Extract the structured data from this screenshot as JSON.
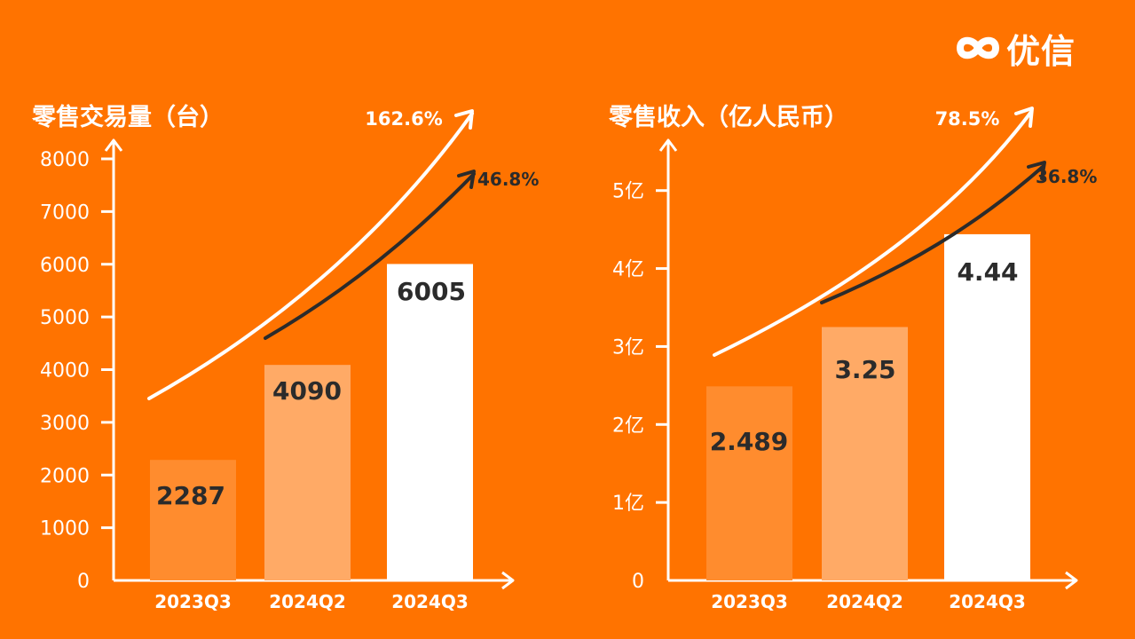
{
  "brand": {
    "name": "优信",
    "logo_icon": "infinity-icon",
    "color": "#FFFFFF"
  },
  "colors": {
    "background": "#FF7300",
    "axis": "#FFFFFF",
    "bar_2023q3": "#FF8C2E",
    "bar_2024q2": "#FFAA66",
    "bar_2024q3": "#FFFFFF",
    "label_dark": "#2B2B2B",
    "arrow_white": "#FFFFFF",
    "arrow_dark": "#2B2B2B"
  },
  "chart_data": [
    {
      "type": "bar",
      "title": "零售交易量（台）",
      "categories": [
        "2023Q3",
        "2024Q2",
        "2024Q3"
      ],
      "values": [
        2287,
        4090,
        6005
      ],
      "value_labels": [
        "2287",
        "4090",
        "6005"
      ],
      "ylim": [
        0,
        8000
      ],
      "y_ticks": [
        0,
        1000,
        2000,
        3000,
        4000,
        5000,
        6000,
        7000,
        8000
      ],
      "y_tick_labels": [
        "0",
        "1000",
        "2000",
        "3000",
        "4000",
        "5000",
        "6000",
        "7000",
        "8000"
      ],
      "grid": false,
      "annotations": [
        {
          "text": "162.6%",
          "from": "2023Q3",
          "to": "2024Q3",
          "arrow": "white"
        },
        {
          "text": "46.8%",
          "from": "2024Q2",
          "to": "2024Q3",
          "arrow": "dark"
        }
      ]
    },
    {
      "type": "bar",
      "title": "零售收入（亿人民币）",
      "categories": [
        "2023Q3",
        "2024Q2",
        "2024Q3"
      ],
      "values": [
        2.489,
        3.25,
        4.44
      ],
      "value_labels": [
        "2.489",
        "3.25",
        "4.44"
      ],
      "ylim": [
        0,
        5.6
      ],
      "y_ticks": [
        0,
        1,
        2,
        3,
        4,
        5
      ],
      "y_tick_labels": [
        "0",
        "1亿",
        "2亿",
        "3亿",
        "4亿",
        "5亿"
      ],
      "grid": false,
      "annotations": [
        {
          "text": "78.5%",
          "from": "2023Q3",
          "to": "2024Q3",
          "arrow": "white"
        },
        {
          "text": "36.8%",
          "from": "2024Q2",
          "to": "2024Q3",
          "arrow": "dark"
        }
      ]
    }
  ]
}
